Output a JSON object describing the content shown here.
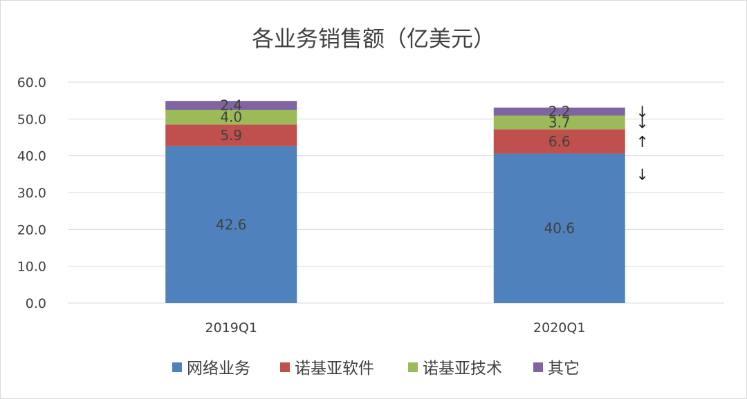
{
  "chart_data": {
    "type": "bar",
    "stacked": true,
    "title": "各业务销售额（亿美元）",
    "xlabel": "",
    "ylabel": "",
    "ylim": [
      0,
      60
    ],
    "yticks": [
      "0.0",
      "10.0",
      "20.0",
      "30.0",
      "40.0",
      "50.0",
      "60.0"
    ],
    "grid": true,
    "legend_position": "bottom",
    "categories": [
      "2019Q1",
      "2020Q1"
    ],
    "series": [
      {
        "name": "网络业务",
        "color": "#4F81BD",
        "values": [
          42.6,
          40.6
        ],
        "labels": [
          "42.6",
          "40.6"
        ]
      },
      {
        "name": "诺基亚软件",
        "color": "#C0504D",
        "values": [
          5.9,
          6.6
        ],
        "labels": [
          "5.9",
          "6.6"
        ]
      },
      {
        "name": "诺基亚技术",
        "color": "#9BBB59",
        "values": [
          4.0,
          3.7
        ],
        "labels": [
          "4.0",
          "3.7"
        ]
      },
      {
        "name": "其它",
        "color": "#8064A2",
        "values": [
          2.4,
          2.2
        ],
        "labels": [
          "2.4",
          "2.2"
        ]
      }
    ],
    "annotations": [
      {
        "series": "其它",
        "category": "2020Q1",
        "text": "↓"
      },
      {
        "series": "诺基亚技术",
        "category": "2020Q1",
        "text": "↓"
      },
      {
        "series": "诺基亚软件",
        "category": "2020Q1",
        "text": "↑"
      },
      {
        "series": "网络业务",
        "category": "2020Q1",
        "text": "↓"
      }
    ]
  }
}
